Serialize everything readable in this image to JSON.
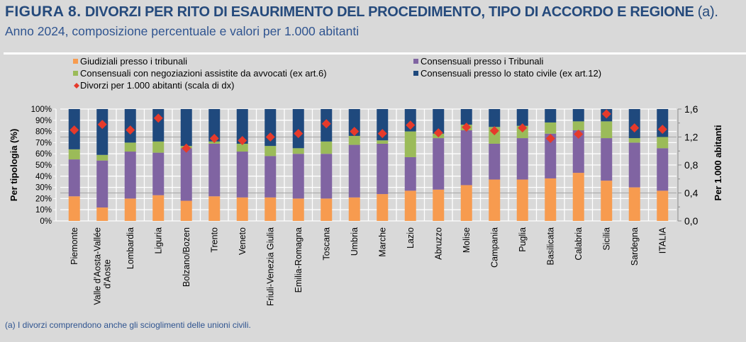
{
  "title": {
    "prefix": "FIGURA 8.",
    "main": "DIVORZI PER RITO DI ESAURIMENTO DEL PROCEDIMENTO, TIPO DI ACCORDO E REGIONE",
    "suffix": " (a)."
  },
  "subtitle": "Anno 2024, composizione percentuale e valori per 1.000 abitanti",
  "footnote": "(a) I divorzi comprendono anche gli scioglimenti delle unioni civili.",
  "chart_data": {
    "type": "bar",
    "stacked": true,
    "ylabel": "Per tipologia (%)",
    "y2label": "Per 1.000 abitanti",
    "ylim": [
      0,
      100
    ],
    "y2lim": [
      0,
      1.6
    ],
    "yticks": [
      "0%",
      "10%",
      "20%",
      "30%",
      "40%",
      "50%",
      "60%",
      "70%",
      "80%",
      "90%",
      "100%"
    ],
    "y2ticks": [
      "0,0",
      "0,4",
      "0,8",
      "1,2",
      "1,6"
    ],
    "grid": true,
    "legend_position": "top",
    "categories": [
      "Piemonte",
      "Valle d'Aosta-Vallée d'Aoste",
      "Lombardia",
      "Liguria",
      "Bolzano/Bozen",
      "Trento",
      "Veneto",
      "Friuli-Venezia Giulia",
      "Emilia-Romagna",
      "Toscana",
      "Umbria",
      "Marche",
      "Lazio",
      "Abruzzo",
      "Molise",
      "Campania",
      "Puglia",
      "Basilicata",
      "Calabria",
      "Sicilia",
      "Sardegna",
      "ITALIA"
    ],
    "category_lines": [
      [
        "Piemonte"
      ],
      [
        "Valle d'Aosta-Vallée",
        "d'Aoste"
      ],
      [
        "Lombardia"
      ],
      [
        "Liguria"
      ],
      [
        "Bolzano/Bozen"
      ],
      [
        "Trento"
      ],
      [
        "Veneto"
      ],
      [
        "Friuli-Venezia Giulia"
      ],
      [
        "Emilia-Romagna"
      ],
      [
        "Toscana"
      ],
      [
        "Umbria"
      ],
      [
        "Marche"
      ],
      [
        "Lazio"
      ],
      [
        "Abruzzo"
      ],
      [
        "Molise"
      ],
      [
        "Campania"
      ],
      [
        "Puglia"
      ],
      [
        "Basilicata"
      ],
      [
        "Calabria"
      ],
      [
        "Sicilia"
      ],
      [
        "Sardegna"
      ],
      [
        "ITALIA"
      ]
    ],
    "series": [
      {
        "name": "Giudiziali presso i tribunali",
        "color": "#f79b4f",
        "axis": "left",
        "values": [
          22,
          12,
          20,
          23,
          18,
          22,
          21,
          21,
          20,
          20,
          21,
          24,
          27,
          28,
          32,
          37,
          37,
          38,
          43,
          36,
          30,
          27
        ]
      },
      {
        "name": "Consensuali presso i Tribunali",
        "color": "#8064a2",
        "axis": "left",
        "values": [
          33,
          42,
          42,
          38,
          47,
          47,
          41,
          37,
          40,
          40,
          47,
          45,
          30,
          46,
          49,
          32,
          37,
          40,
          38,
          38,
          40,
          38
        ]
      },
      {
        "name": "Consensuali con negoziazioni assistite da avvocati (ex art.6)",
        "color": "#9bbb59",
        "axis": "left",
        "values": [
          9,
          5,
          8,
          10,
          2,
          2,
          7,
          9,
          5,
          11,
          8,
          3,
          23,
          4,
          5,
          15,
          11,
          10,
          8,
          15,
          4,
          10
        ]
      },
      {
        "name": "Consensuali presso lo stato civile (ex art.12)",
        "color": "#1f497d",
        "axis": "left",
        "values": [
          36,
          41,
          30,
          29,
          33,
          29,
          31,
          33,
          35,
          29,
          24,
          28,
          20,
          22,
          14,
          16,
          15,
          12,
          11,
          11,
          26,
          25
        ]
      },
      {
        "name": "Divorzi per 1.000 abitanti (scala di dx)",
        "color": "#e63a2b",
        "axis": "right",
        "marker": "diamond",
        "values": [
          1.3,
          1.38,
          1.3,
          1.47,
          1.04,
          1.18,
          1.15,
          1.2,
          1.25,
          1.39,
          1.28,
          1.25,
          1.37,
          1.26,
          1.34,
          1.29,
          1.33,
          1.18,
          1.24,
          1.53,
          1.33,
          1.31
        ]
      }
    ],
    "legend_order": [
      0,
      1,
      2,
      3,
      4
    ]
  }
}
